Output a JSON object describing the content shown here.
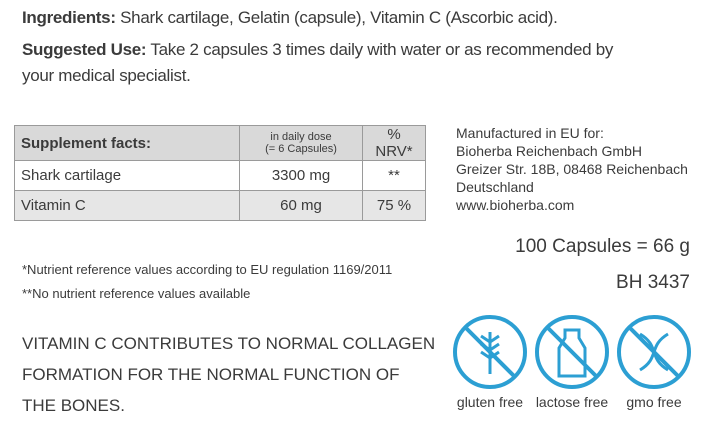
{
  "ingredients": {
    "label": "Ingredients:",
    "text": "Shark cartilage, Gelatin (capsule), Vitamin C (Ascorbic acid)."
  },
  "suggested_use": {
    "label": "Suggested Use:",
    "lines": [
      "Take 2 capsules 3 times daily with water or as recommended by",
      "your medical specialist."
    ]
  },
  "table": {
    "header": [
      "Supplement facts:",
      [
        "in daily dose",
        "(= 6 Capsules)"
      ],
      "% NRV*"
    ],
    "rows": [
      [
        "Shark cartilage",
        "3300 mg",
        "**"
      ],
      [
        "Vitamin C",
        "60 mg",
        "75 %"
      ]
    ]
  },
  "manufacturer": [
    "Manufactured in EU for:",
    "Bioherba Reichenbach GmbH",
    "Greizer Str. 18B, 08468 Reichenbach",
    "Deutschland",
    "www.bioherba.com"
  ],
  "quantity": "100 Capsules = 66 g",
  "code": "BH 3437",
  "footnotes": [
    "*Nutrient reference values according to EU regulation 1169/2011",
    "**No nutrient reference values available"
  ],
  "claim": [
    "VITAMIN C CONTRIBUTES TO NORMAL COLLAGEN",
    "FORMATION FOR THE NORMAL FUNCTION OF",
    "THE BONES."
  ],
  "icons": [
    "gluten free",
    "lactose free",
    "gmo free"
  ]
}
